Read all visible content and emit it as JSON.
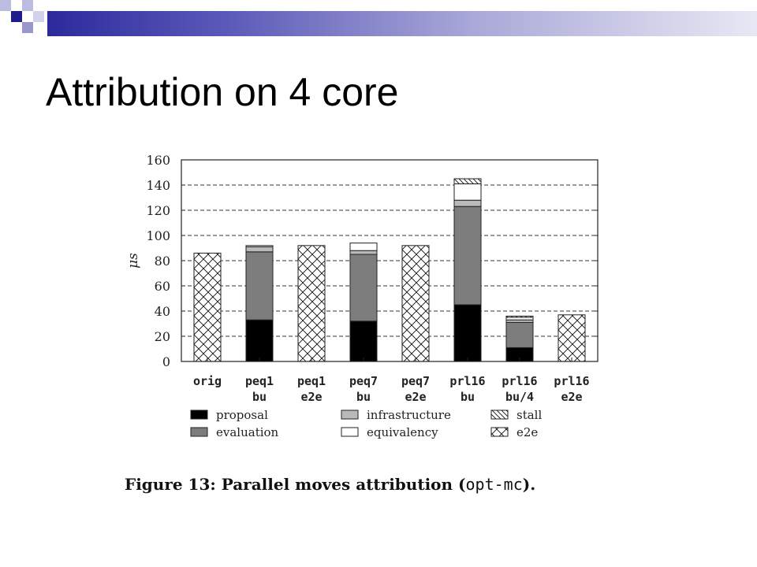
{
  "slide": {
    "title": "Attribution on 4 core"
  },
  "chart_data": {
    "type": "bar",
    "stacked": true,
    "ylabel": "μs",
    "ylim": [
      0,
      160
    ],
    "yticks": [
      0,
      20,
      40,
      60,
      80,
      100,
      120,
      140,
      160
    ],
    "grid": "dashed horizontal",
    "legend_position": "bottom",
    "categories": [
      {
        "line1": "orig",
        "line2": ""
      },
      {
        "line1": "peq1",
        "line2": "bu"
      },
      {
        "line1": "peq1",
        "line2": "e2e"
      },
      {
        "line1": "peq7",
        "line2": "bu"
      },
      {
        "line1": "peq7",
        "line2": "e2e"
      },
      {
        "line1": "prl16",
        "line2": "bu"
      },
      {
        "line1": "prl16",
        "line2": "bu/4"
      },
      {
        "line1": "prl16",
        "line2": "e2e"
      }
    ],
    "series": [
      {
        "name": "proposal",
        "pattern": "black",
        "values": [
          0,
          33,
          0,
          32,
          0,
          45,
          11,
          0
        ]
      },
      {
        "name": "evaluation",
        "pattern": "darkgray",
        "values": [
          0,
          54,
          0,
          53,
          0,
          78,
          20,
          0
        ]
      },
      {
        "name": "infrastructure",
        "pattern": "lightgray",
        "values": [
          0,
          4,
          0,
          3,
          0,
          5,
          2,
          0
        ]
      },
      {
        "name": "equivalency",
        "pattern": "white",
        "values": [
          0,
          1,
          0,
          6,
          0,
          13,
          2,
          0
        ]
      },
      {
        "name": "stall",
        "pattern": "diagonal",
        "values": [
          0,
          0,
          0,
          0,
          0,
          4,
          1,
          0
        ]
      },
      {
        "name": "e2e",
        "pattern": "crosshatch",
        "values": [
          86,
          0,
          92,
          0,
          92,
          0,
          0,
          37
        ]
      }
    ],
    "legend_order": [
      "proposal",
      "infrastructure",
      "stall",
      "evaluation",
      "equivalency",
      "e2e"
    ]
  },
  "caption": {
    "prefix": "Figure 13:  Parallel moves attribution (",
    "code": "opt-mc",
    "suffix": ")."
  }
}
